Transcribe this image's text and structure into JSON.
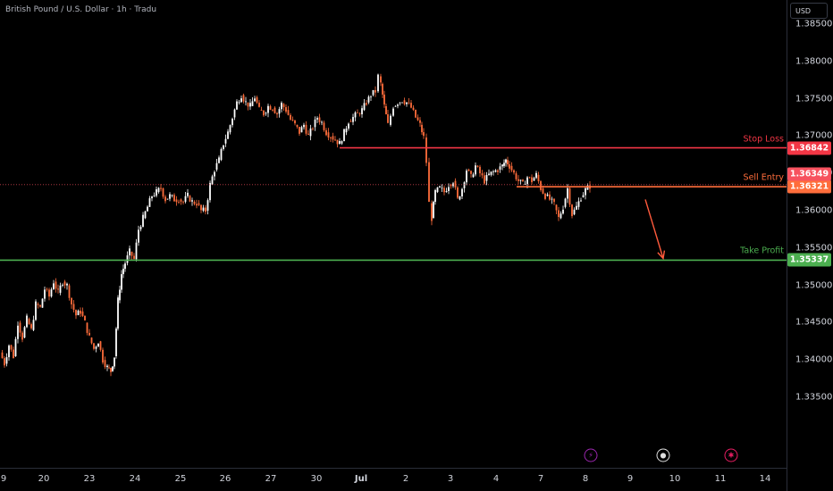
{
  "header": {
    "symbol_title": "British Pound / U.S. Dollar · 1h · Tradu",
    "currency_button": "USD"
  },
  "events": [
    {
      "name": "lightning-event-icon",
      "glyph": "⚡",
      "color": "#9c27b0"
    },
    {
      "name": "us-flag-event-icon",
      "glyph": "●",
      "color": "#e0e0e0"
    },
    {
      "name": "uk-flag-event-icon",
      "glyph": "✱",
      "color": "#e91e63"
    }
  ],
  "chart_data": {
    "type": "candlestick",
    "title": "British Pound / U.S. Dollar · 1h · Tradu",
    "y_axis": {
      "range": [
        1.331,
        1.3895
      ],
      "ticks": [
        "1.38500",
        "1.38000",
        "1.37500",
        "1.37000",
        "1.36500",
        "1.36000",
        "1.35500",
        "1.35000",
        "1.34500",
        "1.34000",
        "1.33500"
      ]
    },
    "x_axis": {
      "ticks": [
        "9",
        "20",
        "23",
        "24",
        "25",
        "26",
        "27",
        "30",
        "Jul",
        "2",
        "3",
        "4",
        "7",
        "8",
        "9",
        "10",
        "11",
        "14"
      ]
    },
    "price_path": [
      [
        0,
        1.341
      ],
      [
        5,
        1.3395
      ],
      [
        10,
        1.342
      ],
      [
        15,
        1.3405
      ],
      [
        20,
        1.345
      ],
      [
        25,
        1.343
      ],
      [
        30,
        1.3455
      ],
      [
        35,
        1.344
      ],
      [
        40,
        1.3475
      ],
      [
        45,
        1.347
      ],
      [
        50,
        1.3495
      ],
      [
        55,
        1.3485
      ],
      [
        60,
        1.3505
      ],
      [
        65,
        1.349
      ],
      [
        70,
        1.3505
      ],
      [
        75,
        1.35
      ],
      [
        80,
        1.3475
      ],
      [
        85,
        1.346
      ],
      [
        90,
        1.3465
      ],
      [
        95,
        1.345
      ],
      [
        100,
        1.343
      ],
      [
        105,
        1.3415
      ],
      [
        110,
        1.3425
      ],
      [
        115,
        1.34
      ],
      [
        120,
        1.339
      ],
      [
        124,
        1.3385
      ],
      [
        128,
        1.3405
      ],
      [
        132,
        1.348
      ],
      [
        136,
        1.3515
      ],
      [
        140,
        1.353
      ],
      [
        145,
        1.3545
      ],
      [
        150,
        1.3535
      ],
      [
        155,
        1.3575
      ],
      [
        160,
        1.359
      ],
      [
        165,
        1.3605
      ],
      [
        170,
        1.362
      ],
      [
        175,
        1.3625
      ],
      [
        180,
        1.363
      ],
      [
        185,
        1.3615
      ],
      [
        190,
        1.362
      ],
      [
        195,
        1.3615
      ],
      [
        200,
        1.3615
      ],
      [
        205,
        1.3612
      ],
      [
        210,
        1.362
      ],
      [
        215,
        1.3612
      ],
      [
        220,
        1.361
      ],
      [
        225,
        1.36
      ],
      [
        230,
        1.36
      ],
      [
        235,
        1.3635
      ],
      [
        240,
        1.3655
      ],
      [
        245,
        1.3668
      ],
      [
        250,
        1.369
      ],
      [
        255,
        1.3705
      ],
      [
        260,
        1.3725
      ],
      [
        265,
        1.3745
      ],
      [
        270,
        1.3755
      ],
      [
        275,
        1.3745
      ],
      [
        280,
        1.374
      ],
      [
        285,
        1.3752
      ],
      [
        290,
        1.3735
      ],
      [
        295,
        1.373
      ],
      [
        300,
        1.374
      ],
      [
        305,
        1.3738
      ],
      [
        310,
        1.373
      ],
      [
        315,
        1.3743
      ],
      [
        320,
        1.3735
      ],
      [
        325,
        1.3722
      ],
      [
        330,
        1.3715
      ],
      [
        335,
        1.3705
      ],
      [
        340,
        1.3715
      ],
      [
        345,
        1.37
      ],
      [
        350,
        1.3712
      ],
      [
        355,
        1.3725
      ],
      [
        360,
        1.3718
      ],
      [
        365,
        1.3705
      ],
      [
        370,
        1.37
      ],
      [
        375,
        1.3695
      ],
      [
        380,
        1.369
      ],
      [
        385,
        1.3705
      ],
      [
        390,
        1.372
      ],
      [
        395,
        1.3725
      ],
      [
        400,
        1.373
      ],
      [
        405,
        1.3735
      ],
      [
        410,
        1.3745
      ],
      [
        415,
        1.3755
      ],
      [
        420,
        1.376
      ],
      [
        423,
        1.378
      ],
      [
        426,
        1.377
      ],
      [
        430,
        1.374
      ],
      [
        434,
        1.3715
      ],
      [
        440,
        1.374
      ],
      [
        445,
        1.3745
      ],
      [
        450,
        1.3748
      ],
      [
        455,
        1.3745
      ],
      [
        460,
        1.3738
      ],
      [
        465,
        1.3725
      ],
      [
        470,
        1.3715
      ],
      [
        474,
        1.3698
      ],
      [
        477,
        1.3665
      ],
      [
        480,
        1.361
      ],
      [
        483,
        1.359
      ],
      [
        487,
        1.3625
      ],
      [
        492,
        1.363
      ],
      [
        497,
        1.3625
      ],
      [
        502,
        1.3635
      ],
      [
        507,
        1.364
      ],
      [
        512,
        1.3615
      ],
      [
        517,
        1.363
      ],
      [
        522,
        1.3655
      ],
      [
        527,
        1.3645
      ],
      [
        532,
        1.366
      ],
      [
        537,
        1.365
      ],
      [
        542,
        1.364
      ],
      [
        547,
        1.3648
      ],
      [
        552,
        1.3652
      ],
      [
        557,
        1.3655
      ],
      [
        562,
        1.366
      ],
      [
        566,
        1.3668
      ],
      [
        570,
        1.366
      ],
      [
        575,
        1.365
      ],
      [
        580,
        1.364
      ],
      [
        585,
        1.3635
      ],
      [
        590,
        1.3645
      ],
      [
        595,
        1.364
      ],
      [
        600,
        1.3648
      ],
      [
        605,
        1.363
      ],
      [
        610,
        1.362
      ],
      [
        615,
        1.3615
      ],
      [
        620,
        1.3608
      ],
      [
        625,
        1.359
      ],
      [
        630,
        1.3605
      ],
      [
        635,
        1.363
      ],
      [
        640,
        1.3595
      ],
      [
        645,
        1.3605
      ],
      [
        650,
        1.3618
      ],
      [
        655,
        1.3628
      ],
      [
        660,
        1.3633
      ]
    ],
    "levels": [
      {
        "name": "Stop Loss",
        "value": 1.36842,
        "tag": "1.36842",
        "color": "#f23645",
        "tag_text": "#ffffff"
      },
      {
        "name": "Sell Entry",
        "value": 1.36321,
        "tag": "1.36321",
        "color": "#ff6d3b",
        "tag_text": "#ffffff"
      },
      {
        "name": "Take Profit",
        "value": 1.35337,
        "tag": "1.35337",
        "color": "#4caf50",
        "tag_text": "#ffffff"
      }
    ],
    "current_price": {
      "value": 1.36349,
      "tag": "1.36349",
      "color": "#f7525f"
    },
    "projection_arrow": {
      "from": [
        722,
        1.3615
      ],
      "to": [
        742,
        1.3536
      ],
      "color": "#ff5a3c"
    },
    "colors": {
      "up": "#ffffff",
      "down": "#ff6d3b"
    }
  }
}
